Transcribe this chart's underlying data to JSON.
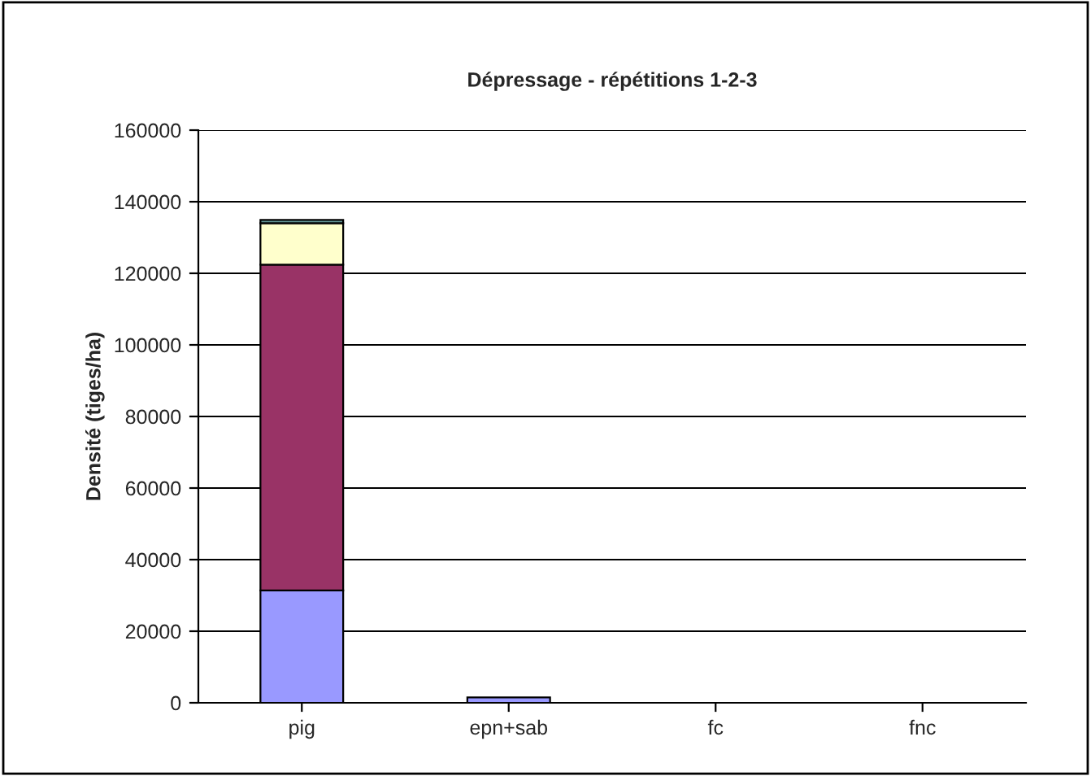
{
  "chart_data": {
    "type": "bar",
    "title": "Dépressage - répétitions 1-2-3",
    "ylabel": "Densité (tiges/ha)",
    "categories": [
      "pig",
      "epn+sab",
      "fc",
      "fnc"
    ],
    "stacked": true,
    "series": [
      {
        "color": "#9999ff",
        "values": [
          31400,
          1500,
          null,
          null
        ]
      },
      {
        "color": "#993366",
        "values": [
          91000,
          null,
          null,
          null
        ]
      },
      {
        "color": "#ffffcc",
        "values": [
          11600,
          null,
          null,
          null
        ]
      },
      {
        "color": "#669999",
        "values": [
          900,
          null,
          null,
          null
        ]
      }
    ],
    "ylim": [
      0,
      160000
    ],
    "yticks": [
      0,
      20000,
      40000,
      60000,
      80000,
      100000,
      120000,
      140000,
      160000
    ],
    "grid": "y",
    "legend": false
  }
}
